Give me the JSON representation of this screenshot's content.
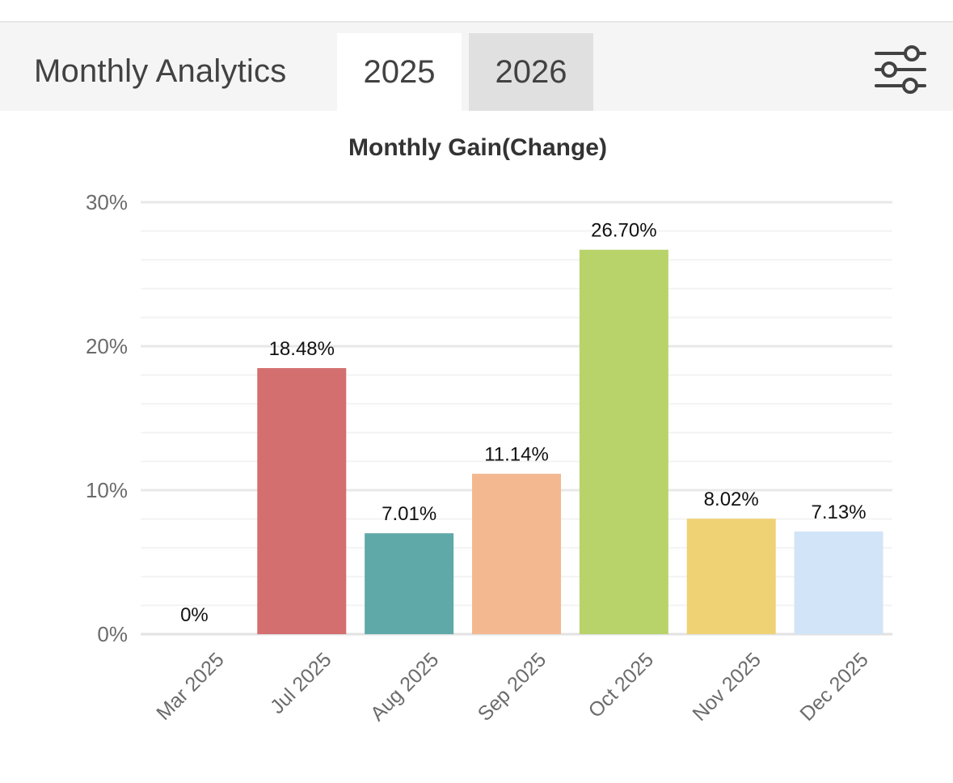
{
  "header": {
    "title": "Monthly Analytics",
    "tabs": [
      {
        "label": "2025",
        "active": true
      },
      {
        "label": "2026",
        "active": false
      }
    ],
    "filter_icon": "sliders-icon"
  },
  "chart_data": {
    "type": "bar",
    "title": "Monthly Gain(Change)",
    "xlabel": "",
    "ylabel": "",
    "categories": [
      "Mar 2025",
      "Jul 2025",
      "Aug 2025",
      "Sep 2025",
      "Oct 2025",
      "Nov 2025",
      "Dec 2025"
    ],
    "values": [
      0,
      18.48,
      7.01,
      11.14,
      26.7,
      8.02,
      7.13
    ],
    "value_labels": [
      "0%",
      "18.48%",
      "7.01%",
      "11.14%",
      "26.70%",
      "8.02%",
      "7.13%"
    ],
    "colors": [
      "#d36f6f",
      "#d36f6f",
      "#60a9a9",
      "#f4b891",
      "#b8d36a",
      "#efd274",
      "#d2e4f7"
    ],
    "ylim": [
      0,
      30
    ],
    "yticks": [
      0,
      10,
      20,
      30
    ],
    "ytick_labels": [
      "0%",
      "10%",
      "20%",
      "30%"
    ],
    "grid": true,
    "legend": "none"
  }
}
